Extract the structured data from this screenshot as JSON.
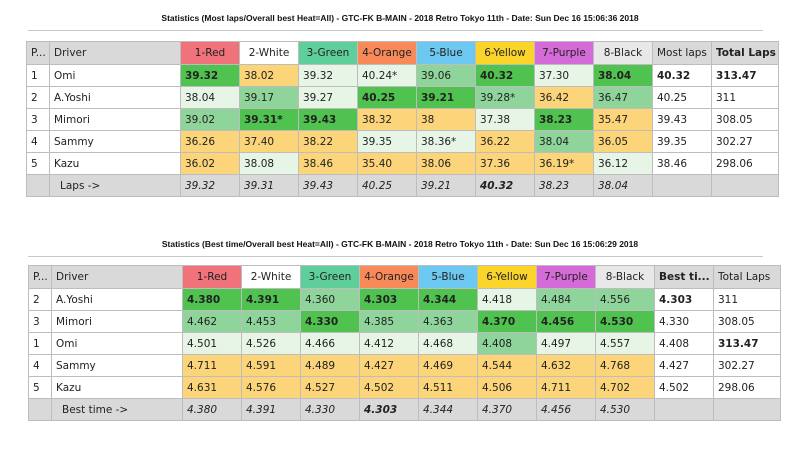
{
  "colors": {
    "Red": "#f0727a",
    "White": "#ffffff",
    "Green": "#5ecf9b",
    "Orange": "#f88a5a",
    "Blue": "#6cc8f0",
    "Yellow": "#fad42a",
    "Purple": "#d56bd8",
    "Black": "#e8e8e8"
  },
  "tables": [
    {
      "title": "Statistics (Most laps/Overall best Heat=All) - GTC-FK B-MAIN - 2018 Retro Tokyo 11th - Date: Sun Dec 16 15:06:36 2018",
      "headers": {
        "pos": "P...",
        "driver": "Driver",
        "cars": [
          "1-Red",
          "2-White",
          "3-Green",
          "4-Orange",
          "5-Blue",
          "6-Yellow",
          "7-Purple",
          "8-Black"
        ],
        "summary": "Most laps",
        "total": "Total Laps",
        "bold_col": "total"
      },
      "rows": [
        {
          "pos": "1",
          "driver": "Omi",
          "cells": [
            [
              "39.32",
              "best"
            ],
            [
              "38.02",
              "yel"
            ],
            [
              "39.32",
              "light"
            ],
            [
              "40.24*",
              "light"
            ],
            [
              "39.06",
              "mid"
            ],
            [
              "40.32",
              "best"
            ],
            [
              "37.30",
              "light"
            ],
            [
              "38.04",
              "best"
            ]
          ],
          "summary": "40.32",
          "total": "313.47",
          "summary_bold": true,
          "total_bold": true
        },
        {
          "pos": "2",
          "driver": "A.Yoshi",
          "cells": [
            [
              "38.04",
              "light"
            ],
            [
              "39.17",
              "mid"
            ],
            [
              "39.27",
              "light"
            ],
            [
              "40.25",
              "best"
            ],
            [
              "39.21",
              "best"
            ],
            [
              "39.28*",
              "mid"
            ],
            [
              "36.42",
              "yel"
            ],
            [
              "36.47",
              "mid"
            ]
          ],
          "summary": "40.25",
          "total": "311"
        },
        {
          "pos": "3",
          "driver": "Mimori",
          "cells": [
            [
              "39.02",
              "mid"
            ],
            [
              "39.31*",
              "best"
            ],
            [
              "39.43",
              "best"
            ],
            [
              "38.32",
              "yel"
            ],
            [
              "38",
              "yel"
            ],
            [
              "37.38",
              "light"
            ],
            [
              "38.23",
              "best"
            ],
            [
              "35.47",
              "yel"
            ]
          ],
          "summary": "39.43",
          "total": "308.05"
        },
        {
          "pos": "4",
          "driver": "Sammy",
          "cells": [
            [
              "36.26",
              "yel"
            ],
            [
              "37.40",
              "yel"
            ],
            [
              "38.22",
              "yel"
            ],
            [
              "39.35",
              "light"
            ],
            [
              "38.36*",
              "light"
            ],
            [
              "36.22",
              "yel"
            ],
            [
              "38.04",
              "mid"
            ],
            [
              "36.05",
              "yel"
            ]
          ],
          "summary": "39.35",
          "total": "302.27"
        },
        {
          "pos": "5",
          "driver": "Kazu",
          "cells": [
            [
              "36.02",
              "yel"
            ],
            [
              "38.08",
              "light"
            ],
            [
              "38.46",
              "yel"
            ],
            [
              "35.40",
              "yel"
            ],
            [
              "38.06",
              "yel"
            ],
            [
              "37.36",
              "yel"
            ],
            [
              "36.19*",
              "yel"
            ],
            [
              "36.12",
              "light"
            ]
          ],
          "summary": "38.46",
          "total": "298.06"
        }
      ],
      "footer": {
        "label": "Laps ->",
        "values": [
          "39.32",
          "39.31",
          "39.43",
          "40.25",
          "39.21",
          "40.32",
          "38.23",
          "38.04"
        ],
        "bold_index": 5
      }
    },
    {
      "title": "Statistics (Best time/Overall best Heat=All) - GTC-FK B-MAIN - 2018 Retro Tokyo 11th - Date: Sun Dec 16 15:06:29 2018",
      "headers": {
        "pos": "P...",
        "driver": "Driver",
        "cars": [
          "1-Red",
          "2-White",
          "3-Green",
          "4-Orange",
          "5-Blue",
          "6-Yellow",
          "7-Purple",
          "8-Black"
        ],
        "summary": "Best ti...",
        "total": "Total Laps",
        "bold_col": "summary"
      },
      "rows": [
        {
          "pos": "2",
          "driver": "A.Yoshi",
          "cells": [
            [
              "4.380",
              "best"
            ],
            [
              "4.391",
              "best"
            ],
            [
              "4.360",
              "mid"
            ],
            [
              "4.303",
              "best"
            ],
            [
              "4.344",
              "best"
            ],
            [
              "4.418",
              "light"
            ],
            [
              "4.484",
              "mid"
            ],
            [
              "4.556",
              "mid"
            ]
          ],
          "summary": "4.303",
          "total": "311",
          "summary_bold": true
        },
        {
          "pos": "3",
          "driver": "Mimori",
          "cells": [
            [
              "4.462",
              "mid"
            ],
            [
              "4.453",
              "mid"
            ],
            [
              "4.330",
              "best"
            ],
            [
              "4.385",
              "mid"
            ],
            [
              "4.363",
              "mid"
            ],
            [
              "4.370",
              "best"
            ],
            [
              "4.456",
              "best"
            ],
            [
              "4.530",
              "best"
            ]
          ],
          "summary": "4.330",
          "total": "308.05"
        },
        {
          "pos": "1",
          "driver": "Omi",
          "cells": [
            [
              "4.501",
              "light"
            ],
            [
              "4.526",
              "light"
            ],
            [
              "4.466",
              "light"
            ],
            [
              "4.412",
              "light"
            ],
            [
              "4.468",
              "light"
            ],
            [
              "4.408",
              "mid"
            ],
            [
              "4.497",
              "light"
            ],
            [
              "4.557",
              "light"
            ]
          ],
          "summary": "4.408",
          "total": "313.47",
          "total_bold": true
        },
        {
          "pos": "4",
          "driver": "Sammy",
          "cells": [
            [
              "4.711",
              "yel"
            ],
            [
              "4.591",
              "yel"
            ],
            [
              "4.489",
              "yel"
            ],
            [
              "4.427",
              "yel"
            ],
            [
              "4.469",
              "yel"
            ],
            [
              "4.544",
              "yel"
            ],
            [
              "4.632",
              "yel"
            ],
            [
              "4.768",
              "yel"
            ]
          ],
          "summary": "4.427",
          "total": "302.27"
        },
        {
          "pos": "5",
          "driver": "Kazu",
          "cells": [
            [
              "4.631",
              "yel"
            ],
            [
              "4.576",
              "yel"
            ],
            [
              "4.527",
              "yel"
            ],
            [
              "4.502",
              "yel"
            ],
            [
              "4.511",
              "yel"
            ],
            [
              "4.506",
              "yel"
            ],
            [
              "4.711",
              "yel"
            ],
            [
              "4.702",
              "yel"
            ]
          ],
          "summary": "4.502",
          "total": "298.06"
        }
      ],
      "footer": {
        "label": "Best time ->",
        "values": [
          "4.380",
          "4.391",
          "4.330",
          "4.303",
          "4.344",
          "4.370",
          "4.456",
          "4.530"
        ],
        "bold_index": 3
      }
    }
  ]
}
